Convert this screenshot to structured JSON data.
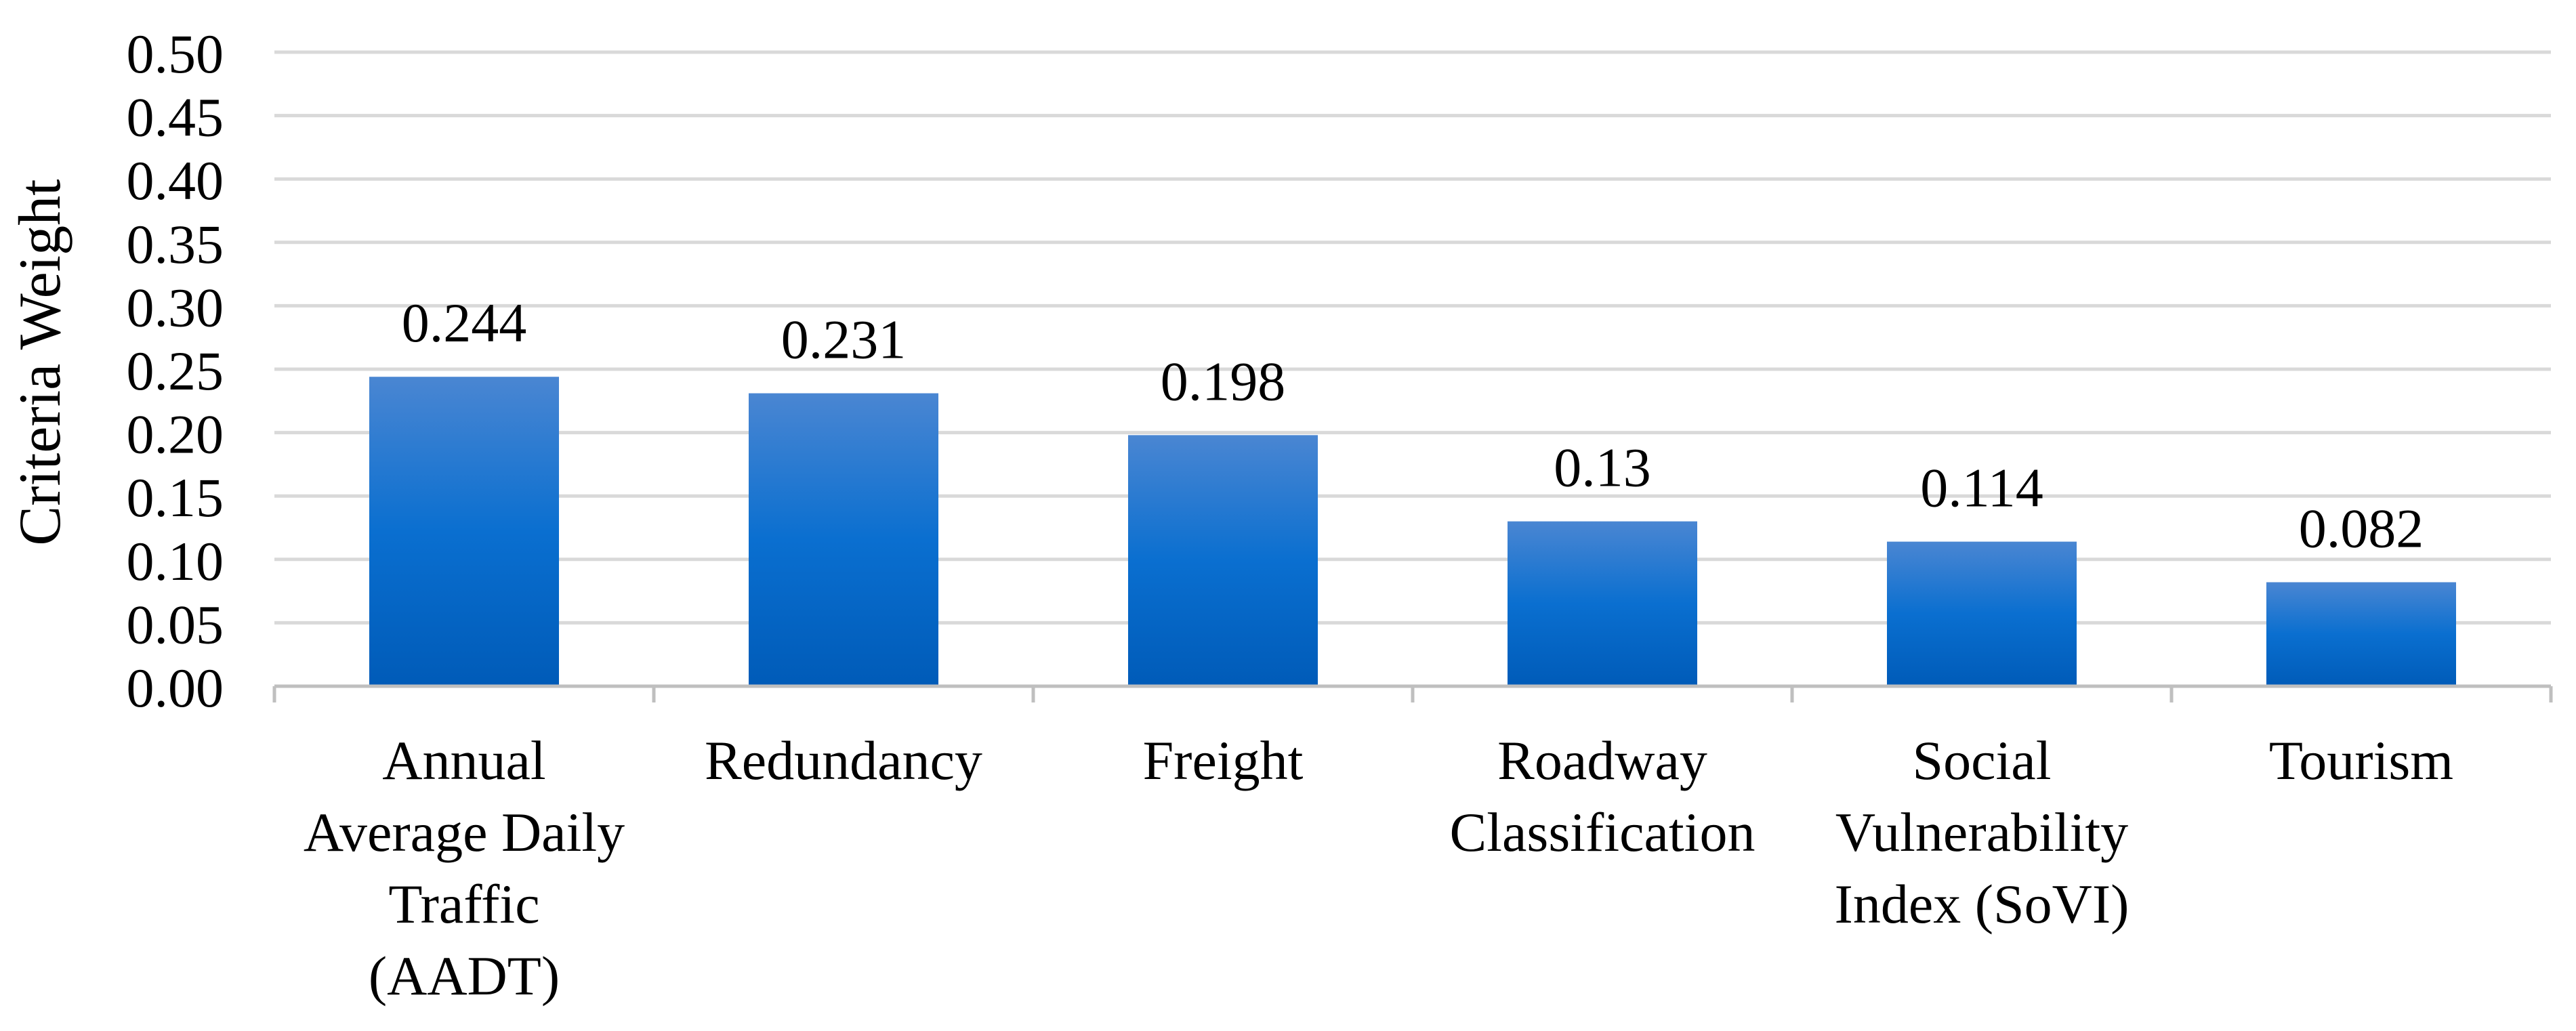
{
  "chart_data": {
    "type": "bar",
    "title": "",
    "xlabel": "",
    "ylabel": "Criteria Weight",
    "ylim": [
      0,
      0.5
    ],
    "ytick_step": 0.05,
    "yticks": [
      "0.00",
      "0.05",
      "0.10",
      "0.15",
      "0.20",
      "0.25",
      "0.30",
      "0.35",
      "0.40",
      "0.45",
      "0.50"
    ],
    "grid": true,
    "legend": "none",
    "categories": [
      [
        "Annual",
        "Average Daily",
        "Traffic",
        "(AADT)"
      ],
      [
        "Redundancy"
      ],
      [
        "Freight"
      ],
      [
        "Roadway",
        "Classification"
      ],
      [
        "Social",
        "Vulnerability",
        "Index (SoVI)"
      ],
      [
        "Tourism"
      ]
    ],
    "values": [
      0.244,
      0.231,
      0.198,
      0.13,
      0.114,
      0.082
    ],
    "value_labels": [
      "0.244",
      "0.231",
      "0.198",
      "0.13",
      "0.114",
      "0.082"
    ],
    "colors": {
      "bar_top": "#4a86d2",
      "bar_mid": "#0a6fd0",
      "bar_bottom": "#005bb8",
      "grid": "#d9d9d9",
      "axis": "#bfbfbf"
    }
  }
}
